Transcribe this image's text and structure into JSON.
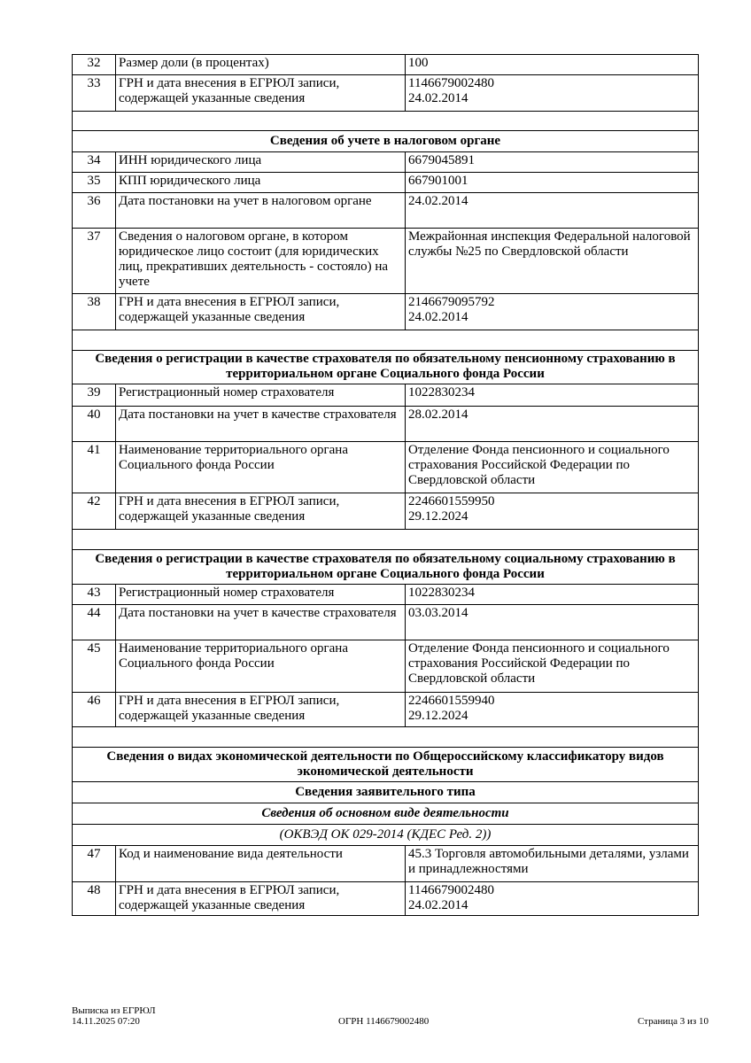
{
  "rows": [
    {
      "type": "row",
      "num": "32",
      "label": "Размер доли (в процентах)",
      "value": "100",
      "h": 23
    },
    {
      "type": "row",
      "num": "33",
      "label": "ГРН и дата внесения в ЕГРЮЛ записи, содержащей указанные сведения",
      "value": "1146679002480\n24.02.2014",
      "h": 41
    },
    {
      "type": "empty",
      "h": 22
    },
    {
      "type": "section",
      "text": "Сведения об учете в налоговом органе",
      "h": 24
    },
    {
      "type": "row",
      "num": "34",
      "label": "ИНН юридического лица",
      "value": "6679045891",
      "h": 23
    },
    {
      "type": "row",
      "num": "35",
      "label": "КПП юридического лица",
      "value": "667901001",
      "h": 23
    },
    {
      "type": "row",
      "num": "36",
      "label": "Дата постановки на учет в налоговом органе",
      "value": "24.02.2014",
      "h": 40
    },
    {
      "type": "row",
      "num": "37",
      "label": "Сведения о налоговом органе, в котором юридическое лицо состоит (для юридических лиц, прекративших деятельность - состояло) на учете",
      "value": "Межрайонная инспекция Федеральной налоговой службы №25 по Свердловской области",
      "h": 74
    },
    {
      "type": "row",
      "num": "38",
      "label": "ГРН и дата внесения в ЕГРЮЛ записи, содержащей указанные сведения",
      "value": "2146679095792\n24.02.2014",
      "h": 41
    },
    {
      "type": "empty",
      "h": 23
    },
    {
      "type": "section",
      "text": "Сведения о регистрации в качестве страхователя по обязательному пенсионному страхованию в территориальном органе Социального фонда России",
      "h": 38
    },
    {
      "type": "row",
      "num": "39",
      "label": "Регистрационный номер страхователя",
      "value": "1022830234",
      "h": 25
    },
    {
      "type": "row",
      "num": "40",
      "label": "Дата постановки на учет в качестве страхователя",
      "value": "28.02.2014",
      "h": 40
    },
    {
      "type": "row",
      "num": "41",
      "label": "Наименование территориального органа Социального фонда России",
      "value": "Отделение Фонда пенсионного и социального страхования Российской Федерации по Свердловской области",
      "h": 58
    },
    {
      "type": "row",
      "num": "42",
      "label": "ГРН и дата внесения в ЕГРЮЛ записи, содержащей указанные сведения",
      "value": "2246601559950\n29.12.2024",
      "h": 41
    },
    {
      "type": "empty",
      "h": 23
    },
    {
      "type": "section",
      "text": "Сведения о регистрации в качестве страхователя по обязательному социальному страхованию в территориальном органе Социального фонда России",
      "h": 39
    },
    {
      "type": "row",
      "num": "43",
      "label": "Регистрационный номер страхователя",
      "value": "1022830234",
      "h": 23
    },
    {
      "type": "row",
      "num": "44",
      "label": "Дата постановки на учет в качестве страхователя",
      "value": "03.03.2014",
      "h": 40
    },
    {
      "type": "row",
      "num": "45",
      "label": "Наименование территориального органа Социального фонда России",
      "value": "Отделение Фонда пенсионного и социального страхования Российской Федерации по Свердловской области",
      "h": 59
    },
    {
      "type": "row",
      "num": "46",
      "label": "ГРН и дата внесения в ЕГРЮЛ записи, содержащей указанные сведения",
      "value": "2246601559940\n29.12.2024",
      "h": 39
    },
    {
      "type": "empty",
      "h": 23
    },
    {
      "type": "section",
      "text": "Сведения о видах экономической деятельности по Общероссийскому классификатору видов экономической деятельности",
      "h": 39
    },
    {
      "type": "section",
      "text": "Сведения заявительного типа",
      "h": 24
    },
    {
      "type": "section",
      "style": "it",
      "text": "Сведения об основном виде деятельности",
      "h": 24
    },
    {
      "type": "section",
      "style": "itn",
      "text": "(ОКВЭД ОК 029-2014 (КДЕС Ред. 2))",
      "h": 24
    },
    {
      "type": "row",
      "num": "47",
      "label": "Код и наименование вида деятельности",
      "value": "45.3 Торговля автомобильными деталями, узлами и принадлежностями",
      "h": 41
    },
    {
      "type": "row",
      "num": "48",
      "label": "ГРН и дата внесения в ЕГРЮЛ записи, содержащей указанные сведения",
      "value": "1146679002480\n24.02.2014",
      "h": 37
    }
  ],
  "footer": {
    "doc_title": "Выписка из ЕГРЮЛ",
    "datetime": "14.11.2025 07:20",
    "ogrn": "ОГРН 1146679002480",
    "page": "Страница 3 из 10"
  }
}
